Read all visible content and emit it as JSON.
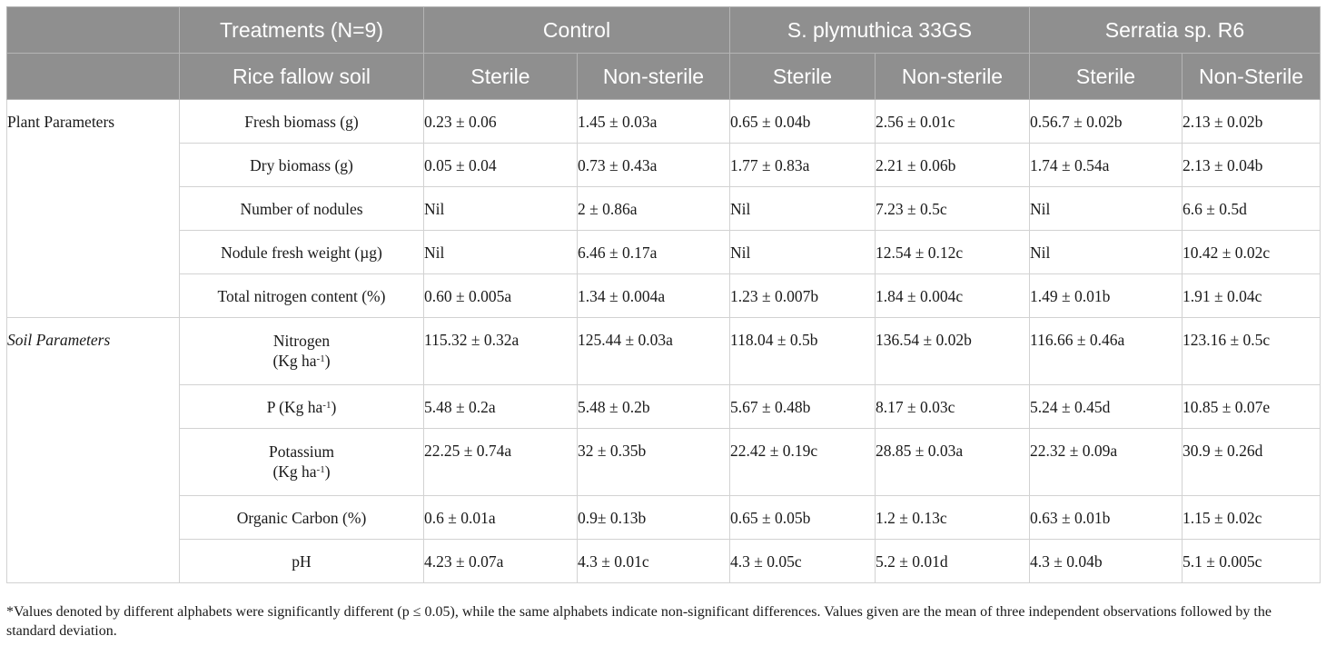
{
  "header": {
    "row1": {
      "treatments_label": "Treatments (N=9)",
      "groups": [
        "Control",
        "S. plymuthica 33GS",
        "Serratia sp. R6"
      ]
    },
    "row2": {
      "soil_label": "Rice fallow soil",
      "conditions": [
        "Sterile",
        "Non-sterile",
        "Sterile",
        "Non-sterile",
        "Sterile",
        "Non-Sterile"
      ]
    }
  },
  "groups": {
    "plant": "Plant Parameters",
    "soil": "Soil Parameters"
  },
  "rows": [
    {
      "param": "Fresh biomass (g)",
      "values": [
        "0.23 ± 0.06",
        "1.45 ± 0.03a",
        "0.65 ± 0.04b",
        "2.56 ± 0.01c",
        "0.56.7 ± 0.02b",
        "2.13 ± 0.02b"
      ]
    },
    {
      "param": "Dry biomass (g)",
      "values": [
        "0.05 ± 0.04",
        "0.73 ± 0.43a",
        "1.77 ± 0.83a",
        "2.21 ± 0.06b",
        "1.74 ± 0.54a",
        "2.13 ± 0.04b"
      ]
    },
    {
      "param": "Number of nodules",
      "values": [
        "Nil",
        "2 ± 0.86a",
        "Nil",
        "7.23 ± 0.5c",
        "Nil",
        "6.6 ± 0.5d"
      ]
    },
    {
      "param": "Nodule fresh weight (µg)",
      "values": [
        "Nil",
        "6.46 ± 0.17a",
        "Nil",
        "12.54 ± 0.12c",
        "Nil",
        "10.42 ± 0.02c"
      ]
    },
    {
      "param": "Total nitrogen content (%)",
      "values": [
        "0.60 ± 0.005a",
        "1.34 ± 0.004a",
        "1.23 ± 0.007b",
        "1.84 ± 0.004c",
        "1.49 ± 0.01b",
        "1.91 ± 0.04c"
      ]
    },
    {
      "param_line1": "Nitrogen",
      "param_unit_pre": "(Kg ha",
      "param_unit_sup": "-1",
      "param_unit_post": ")",
      "values": [
        "115.32 ± 0.32a",
        "125.44 ± 0.03a",
        "118.04 ± 0.5b",
        "136.54 ± 0.02b",
        "116.66 ± 0.46a",
        "123.16 ± 0.5c"
      ]
    },
    {
      "param_pre": "P (Kg ha",
      "param_sup": "-1",
      "param_post": ")",
      "values": [
        "5.48 ± 0.2a",
        "5.48 ± 0.2b",
        "5.67 ± 0.48b",
        "8.17 ± 0.03c",
        "5.24 ± 0.45d",
        "10.85 ± 0.07e"
      ]
    },
    {
      "param_line1": "Potassium",
      "param_unit_pre": "(Kg ha",
      "param_unit_sup": "-1",
      "param_unit_post": ")",
      "values": [
        "22.25 ± 0.74a",
        "32 ± 0.35b",
        "22.42 ± 0.19c",
        "28.85 ± 0.03a",
        "22.32 ± 0.09a",
        "30.9 ± 0.26d"
      ]
    },
    {
      "param": "Organic Carbon (%)",
      "values": [
        "0.6 ± 0.01a",
        "0.9± 0.13b",
        "0.65 ± 0.05b",
        "1.2 ± 0.13c",
        "0.63 ± 0.01b",
        "1.15 ± 0.02c"
      ]
    },
    {
      "param": "pH",
      "values": [
        "4.23 ± 0.07a",
        "4.3 ± 0.01c",
        "4.3 ± 0.05c",
        "5.2 ± 0.01d",
        "4.3 ± 0.04b",
        "5.1 ± 0.005c"
      ]
    }
  ],
  "footnote": "*Values denoted by different alphabets were significantly different (p ≤ 0.05), while the same alphabets indicate non-significant differences. Values given are the mean of three independent observations followed by the standard deviation.",
  "colors": {
    "header_bg": "#8f8f8f",
    "header_text": "#ffffff",
    "border": "#d2d2d2"
  }
}
